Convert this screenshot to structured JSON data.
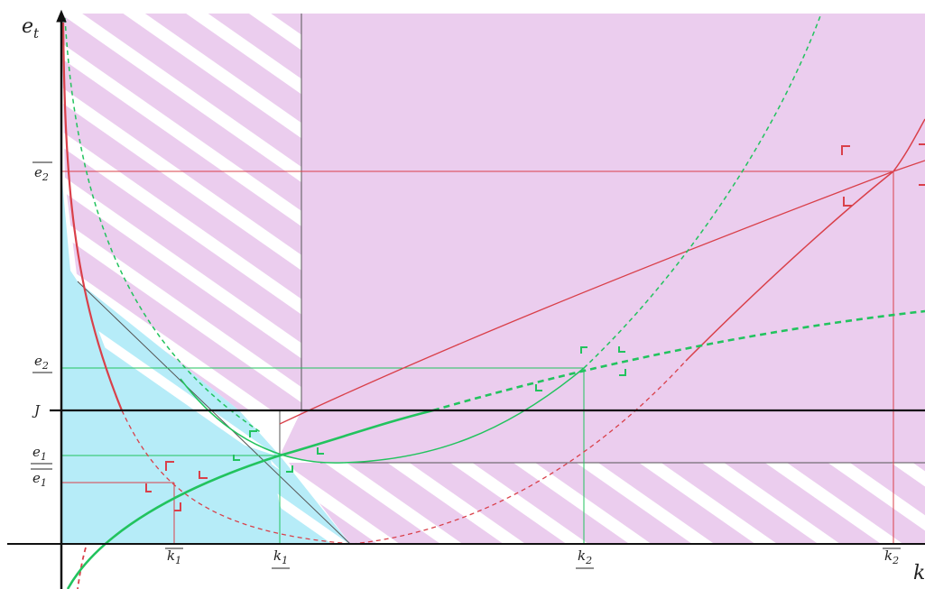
{
  "axes": {
    "y_label": "e",
    "y_label_sub": "t",
    "x_label": "k"
  },
  "y_ticks": {
    "e2_bar": "e",
    "e2_bar_sub": "2",
    "e2_under": "e",
    "e2_under_sub": "2",
    "J": "J",
    "e1_under": "e",
    "e1_under_sub": "1",
    "e1_bar": "e",
    "e1_bar_sub": "1"
  },
  "x_ticks": {
    "k1_bar": "k",
    "k1_bar_sub": "1",
    "k1_under": "k",
    "k1_under_sub": "1",
    "k2_under": "k",
    "k2_under_sub": "2",
    "k2_bar": "k",
    "k2_bar_sub": "2"
  },
  "colors": {
    "magenta_region": "#ebcdee",
    "cyan_region": "#b6ecf8",
    "red_curve": "#d9404a",
    "green_curve": "#22c35e",
    "axis": "#111111",
    "thin_line": "#555555"
  }
}
